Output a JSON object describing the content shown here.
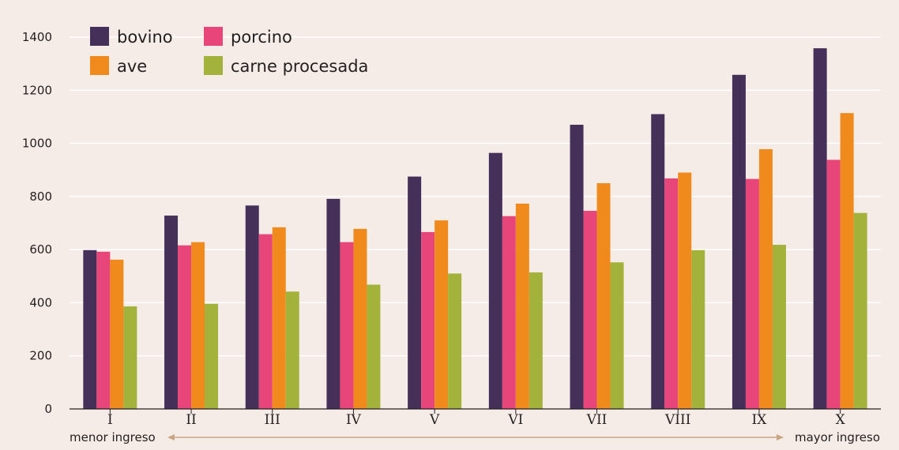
{
  "chart_data": {
    "type": "bar",
    "categories": [
      "I",
      "II",
      "III",
      "IV",
      "V",
      "VI",
      "VII",
      "VIII",
      "IX",
      "X"
    ],
    "series": [
      {
        "name": "bovino",
        "color": "#45305a",
        "values": [
          598,
          728,
          766,
          791,
          875,
          964,
          1070,
          1110,
          1258,
          1358
        ]
      },
      {
        "name": "porcino",
        "color": "#e8457b",
        "values": [
          592,
          616,
          658,
          628,
          666,
          726,
          746,
          868,
          866,
          938
        ]
      },
      {
        "name": "ave",
        "color": "#f08a1d",
        "values": [
          562,
          628,
          684,
          678,
          710,
          773,
          850,
          890,
          978,
          1114
        ]
      },
      {
        "name": "carne procesada",
        "color": "#a3b23a",
        "values": [
          386,
          396,
          442,
          468,
          510,
          514,
          552,
          598,
          618,
          738
        ]
      }
    ],
    "ylim": [
      0,
      1400
    ],
    "yticks": [
      0,
      200,
      400,
      600,
      800,
      1000,
      1200,
      1400
    ],
    "grid": true,
    "legend_position": "top-left",
    "range_labels": {
      "low": "menor ingreso",
      "high": "mayor ingreso"
    }
  }
}
